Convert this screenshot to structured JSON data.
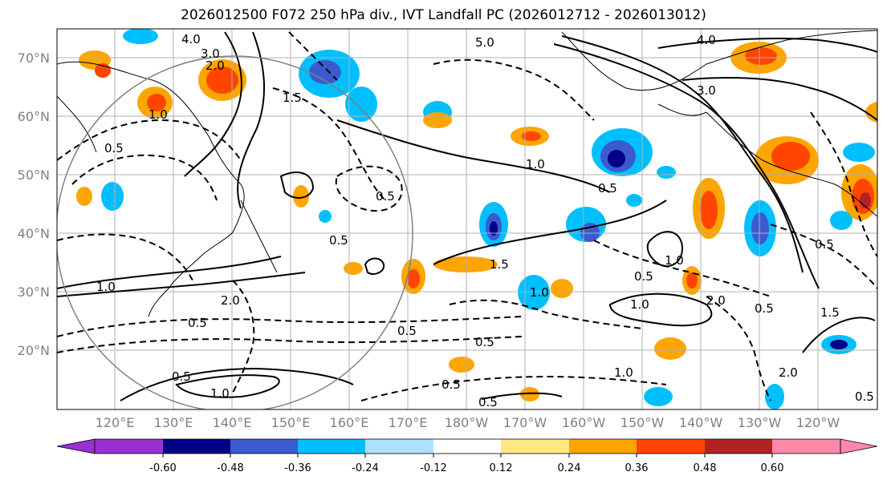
{
  "title": "2026012500 F072 250 hPa div., IVT Landfall PC (2026012712 - 2026013012)",
  "lat_labels": [
    "70°N",
    "60°N",
    "50°N",
    "40°N",
    "30°N",
    "20°N"
  ],
  "lon_labels": [
    "120°E",
    "130°E",
    "140°E",
    "150°E",
    "160°E",
    "170°E",
    "180°W",
    "170°W",
    "160°W",
    "150°W",
    "140°W",
    "130°W",
    "120°W"
  ],
  "contour_labels": [
    "4.0",
    "3.0",
    "2.0",
    "1.0",
    "1.5",
    "5.0",
    "4.0",
    "3.0",
    "1.0",
    "0.5",
    "0.5",
    "0.5",
    "1.5",
    "1.0",
    "1.0",
    "0.5",
    "0.5",
    "0.5",
    "1.0",
    "2.0",
    "0.5",
    "1.0",
    "0.5",
    "0.5",
    "1.0",
    "2.0",
    "0.5",
    "1.0",
    "1.5",
    "0.5",
    "0.5",
    "0.5",
    "2.0",
    "0.5"
  ],
  "colorbar": {
    "colors": [
      "#9b30d0",
      "#000088",
      "#3a5bd0",
      "#00bfff",
      "#b0e0ff",
      "#ffffff",
      "#ffe880",
      "#ffa500",
      "#ff4500",
      "#b22222",
      "#ff88aa"
    ],
    "tick_labels": [
      "-0.60",
      "-0.48",
      "-0.36",
      "-0.24",
      "-0.12",
      "0.12",
      "0.24",
      "0.36",
      "0.48",
      "0.60"
    ]
  }
}
